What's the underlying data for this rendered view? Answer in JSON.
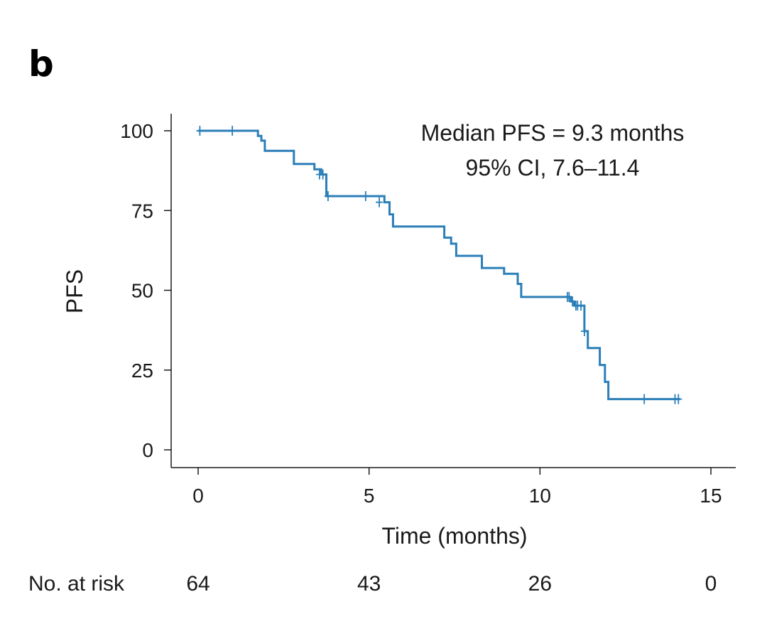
{
  "panel_label": "b",
  "chart_data": {
    "type": "line",
    "style": "step (Kaplan-Meier)",
    "ylabel": "PFS",
    "xlabel": "Time (months)",
    "xlim": [
      0,
      15
    ],
    "ylim": [
      0,
      100
    ],
    "xticks": [
      0,
      5,
      10,
      15
    ],
    "yticks": [
      0,
      25,
      50,
      75,
      100
    ],
    "grid": false,
    "line_color": "#2b7fb8",
    "annotation": [
      "Median PFS = 9.3 months",
      "95% CI, 7.6–11.4"
    ],
    "steps": [
      [
        0,
        100
      ],
      [
        1.75,
        98.4
      ],
      [
        1.85,
        96.9
      ],
      [
        1.95,
        93.7
      ],
      [
        2.8,
        89.6
      ],
      [
        3.4,
        87.9
      ],
      [
        3.6,
        86.3
      ],
      [
        3.75,
        79.5
      ],
      [
        5.45,
        77.6
      ],
      [
        5.6,
        73.8
      ],
      [
        5.7,
        70.0
      ],
      [
        7.2,
        66.5
      ],
      [
        7.4,
        64.6
      ],
      [
        7.55,
        60.8
      ],
      [
        8.3,
        57.0
      ],
      [
        8.95,
        55.2
      ],
      [
        9.35,
        52.0
      ],
      [
        9.45,
        47.9
      ],
      [
        10.9,
        46.5
      ],
      [
        11.0,
        45.2
      ],
      [
        11.3,
        37.2
      ],
      [
        11.4,
        31.9
      ],
      [
        11.75,
        26.6
      ],
      [
        11.9,
        21.3
      ],
      [
        12.0,
        15.9
      ],
      [
        14.1,
        15.9
      ]
    ],
    "censored": [
      [
        0.05,
        100
      ],
      [
        1.0,
        100
      ],
      [
        3.55,
        86.3
      ],
      [
        3.65,
        86.3
      ],
      [
        3.8,
        79.5
      ],
      [
        4.9,
        79.5
      ],
      [
        5.3,
        77.6
      ],
      [
        10.8,
        47.9
      ],
      [
        10.85,
        47.9
      ],
      [
        10.95,
        46.5
      ],
      [
        11.05,
        45.2
      ],
      [
        11.1,
        45.2
      ],
      [
        11.2,
        45.2
      ],
      [
        11.3,
        37.2
      ],
      [
        13.05,
        15.9
      ],
      [
        13.95,
        15.9
      ],
      [
        14.05,
        15.9
      ]
    ],
    "risk_table": {
      "label": "No. at risk",
      "times": [
        0,
        5,
        10,
        15
      ],
      "counts": [
        "64",
        "43",
        "26",
        "0"
      ]
    }
  }
}
